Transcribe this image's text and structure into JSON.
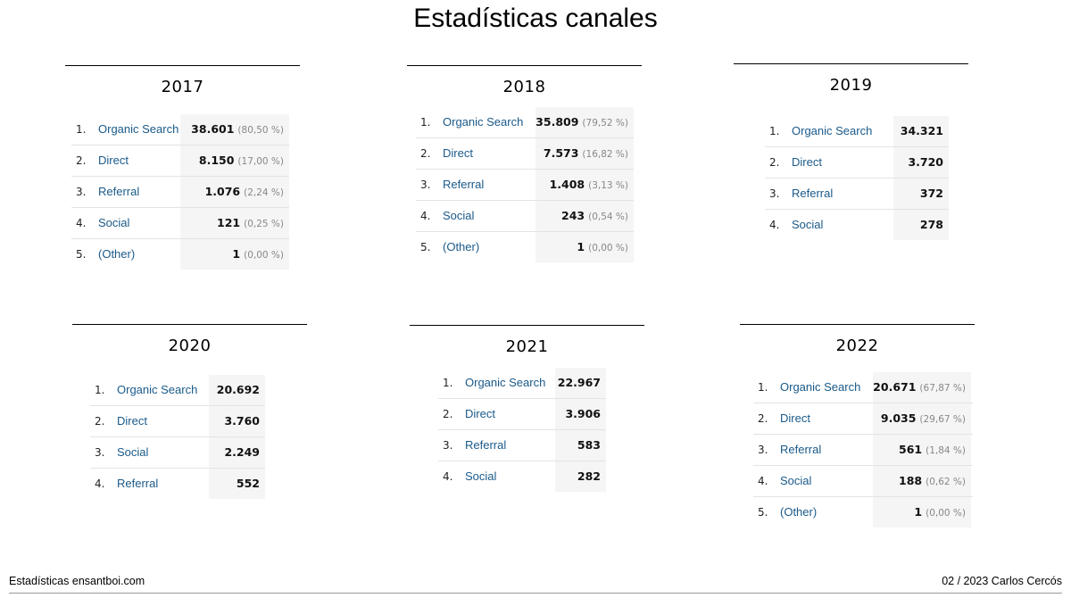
{
  "title": "Estadísticas canales",
  "footer": {
    "left": "Estadísticas ensantboi.com",
    "right": "02 / 2023  Carlos Cercós"
  },
  "panels": [
    {
      "year": "2017",
      "rows": [
        {
          "n": "1.",
          "channel": "Organic Search",
          "value": "38.601",
          "pct": "(80,50 %)"
        },
        {
          "n": "2.",
          "channel": "Direct",
          "value": "8.150",
          "pct": "(17,00 %)"
        },
        {
          "n": "3.",
          "channel": "Referral",
          "value": "1.076",
          "pct": "(2,24 %)"
        },
        {
          "n": "4.",
          "channel": "Social",
          "value": "121",
          "pct": "(0,25 %)"
        },
        {
          "n": "5.",
          "channel": "(Other)",
          "value": "1",
          "pct": "(0,00 %)"
        }
      ]
    },
    {
      "year": "2018",
      "rows": [
        {
          "n": "1.",
          "channel": "Organic Search",
          "value": "35.809",
          "pct": "(79,52 %)"
        },
        {
          "n": "2.",
          "channel": "Direct",
          "value": "7.573",
          "pct": "(16,82 %)"
        },
        {
          "n": "3.",
          "channel": "Referral",
          "value": "1.408",
          "pct": "(3,13 %)"
        },
        {
          "n": "4.",
          "channel": "Social",
          "value": "243",
          "pct": "(0,54 %)"
        },
        {
          "n": "5.",
          "channel": "(Other)",
          "value": "1",
          "pct": "(0,00 %)"
        }
      ]
    },
    {
      "year": "2019",
      "rows": [
        {
          "n": "1.",
          "channel": "Organic Search",
          "value": "34.321",
          "pct": ""
        },
        {
          "n": "2.",
          "channel": "Direct",
          "value": "3.720",
          "pct": ""
        },
        {
          "n": "3.",
          "channel": "Referral",
          "value": "372",
          "pct": ""
        },
        {
          "n": "4.",
          "channel": "Social",
          "value": "278",
          "pct": ""
        }
      ]
    },
    {
      "year": "2020",
      "rows": [
        {
          "n": "1.",
          "channel": "Organic Search",
          "value": "20.692",
          "pct": ""
        },
        {
          "n": "2.",
          "channel": "Direct",
          "value": "3.760",
          "pct": ""
        },
        {
          "n": "3.",
          "channel": "Social",
          "value": "2.249",
          "pct": ""
        },
        {
          "n": "4.",
          "channel": "Referral",
          "value": "552",
          "pct": ""
        }
      ]
    },
    {
      "year": "2021",
      "rows": [
        {
          "n": "1.",
          "channel": "Organic Search",
          "value": "22.967",
          "pct": ""
        },
        {
          "n": "2.",
          "channel": "Direct",
          "value": "3.906",
          "pct": ""
        },
        {
          "n": "3.",
          "channel": "Referral",
          "value": "583",
          "pct": ""
        },
        {
          "n": "4.",
          "channel": "Social",
          "value": "282",
          "pct": ""
        }
      ]
    },
    {
      "year": "2022",
      "rows": [
        {
          "n": "1.",
          "channel": "Organic Search",
          "value": "20.671",
          "pct": "(67,87 %)"
        },
        {
          "n": "2.",
          "channel": "Direct",
          "value": "9.035",
          "pct": "(29,67 %)"
        },
        {
          "n": "3.",
          "channel": "Referral",
          "value": "561",
          "pct": "(1,84 %)"
        },
        {
          "n": "4.",
          "channel": "Social",
          "value": "188",
          "pct": "(0,62 %)"
        },
        {
          "n": "5.",
          "channel": "(Other)",
          "value": "1",
          "pct": "(0,00 %)"
        }
      ]
    }
  ]
}
